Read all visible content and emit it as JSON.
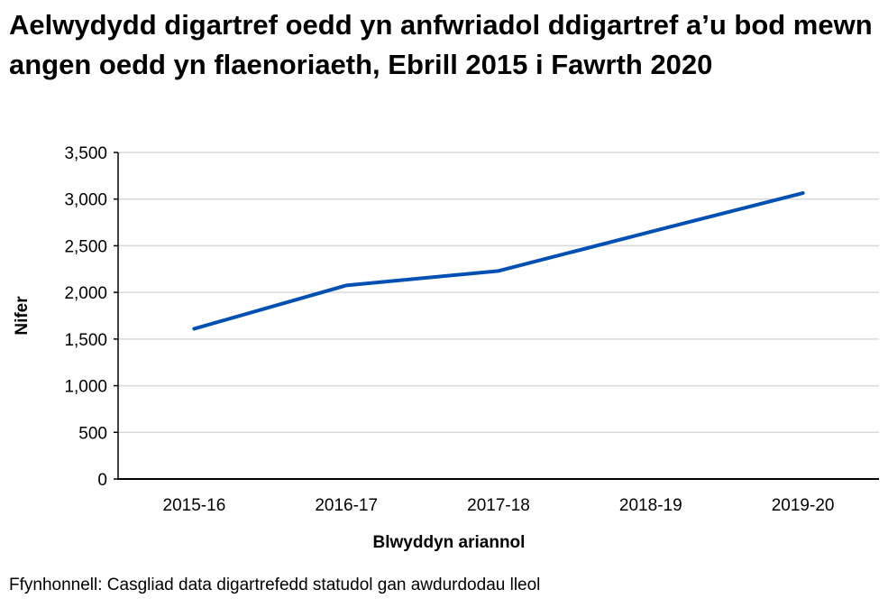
{
  "chart_data": {
    "type": "line",
    "title": "Aelwydydd digartref oedd yn anfwriadol ddigartref a’u bod mewn angen oedd yn flaenoriaeth, Ebrill 2015 i Fawrth 2020",
    "xlabel": "Blwyddyn ariannol",
    "ylabel": "Nifer",
    "categories": [
      "2015-16",
      "2016-17",
      "2017-18",
      "2018-19",
      "2019-20"
    ],
    "series": [
      {
        "values": [
          1610,
          2075,
          2230,
          2650,
          3065
        ],
        "color": "#0050b4"
      }
    ],
    "ylim": [
      0,
      3500
    ],
    "yticks": [
      0,
      500,
      1000,
      1500,
      2000,
      2500,
      3000,
      3500
    ],
    "ytick_labels": [
      "0",
      "500",
      "1,000",
      "1,500",
      "2,000",
      "2,500",
      "3,000",
      "3,500"
    ],
    "grid": true,
    "legend": "none"
  },
  "source": "Ffynhonnell: Casgliad data digartrefedd statudol gan awdurdodau lleol"
}
